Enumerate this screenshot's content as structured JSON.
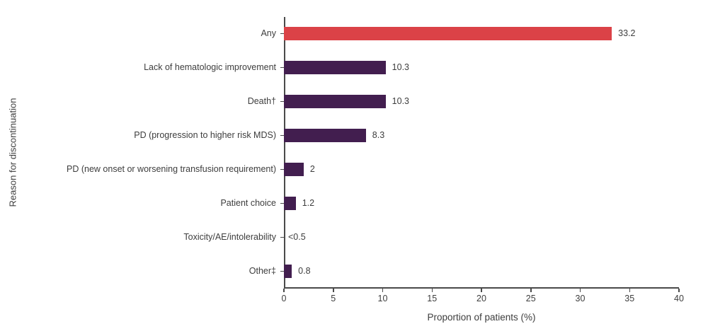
{
  "chart_data": {
    "type": "bar",
    "orientation": "horizontal",
    "title": "",
    "xlabel": "Proportion of patients (%)",
    "ylabel": "Reason for discontinuation",
    "xlim": [
      0,
      40
    ],
    "x_ticks": [
      0,
      5,
      10,
      15,
      20,
      25,
      30,
      35,
      40
    ],
    "grid": false,
    "legend": false,
    "categories": [
      "Any",
      "Lack of hematologic improvement",
      "Death†",
      "PD (progression to higher risk MDS)",
      "PD (new onset or worsening transfusion requirement)",
      "Patient choice",
      "Toxicity/AE/intolerability",
      "Other‡"
    ],
    "values": [
      33.2,
      10.3,
      10.3,
      8.3,
      2,
      1.2,
      0,
      0.8
    ],
    "value_labels": [
      "33.2",
      "10.3",
      "10.3",
      "8.3",
      "2",
      "1.2",
      "<0.5",
      "0.8"
    ],
    "bar_colors": [
      "#db4247",
      "#421e4f",
      "#421e4f",
      "#421e4f",
      "#421e4f",
      "#421e4f",
      "#421e4f",
      "#421e4f"
    ]
  },
  "colors": {
    "highlight_bar": "#db4247",
    "default_bar": "#421e4f",
    "axis": "#4a4a4a",
    "text": "#3d3d3d",
    "background": "#ffffff"
  }
}
